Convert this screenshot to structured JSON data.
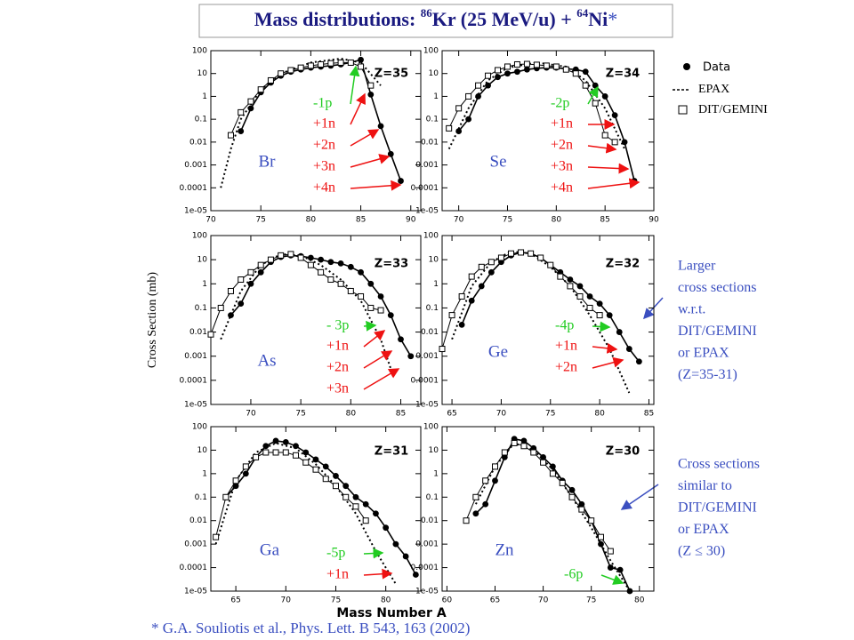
{
  "title_parts": [
    "Mass distributions:  ",
    "86",
    "Kr (25 MeV/u) + ",
    "64",
    "Ni",
    "*"
  ],
  "y_axis_label": "Cross Section (mb)",
  "x_axis_label": "Mass Number A",
  "side_notes": [
    [
      "Larger",
      "cross sections",
      "w.r.t.",
      "DIT/GEMINI",
      "or EPAX",
      "(Z=35-31)"
    ],
    [
      "Cross sections",
      "similar to",
      "DIT/GEMINI",
      "or EPAX",
      "(Z ≤ 30)"
    ]
  ],
  "footnote": "* G.A. Souliotis et al., Phys. Lett.  B  543, 163 (2002)",
  "chart_data": [
    {
      "type": "line",
      "element": "Br",
      "z_label": "Z=35",
      "log_y": true,
      "xlim": [
        70,
        91
      ],
      "xticks": [
        70,
        75,
        80,
        85,
        90
      ],
      "ylim": [
        1e-05,
        100
      ],
      "yticks": [
        100,
        10,
        1,
        0.1,
        0.01,
        0.001,
        0.0001,
        {
          "value": 1e-05,
          "label": "1e-05"
        }
      ],
      "annotations": [
        {
          "text": "-1p",
          "color": "#22cc22"
        },
        {
          "text": "+1n",
          "color": "#ee1111"
        },
        {
          "text": "+2n",
          "color": "#ee1111"
        },
        {
          "text": "+3n",
          "color": "#ee1111"
        },
        {
          "text": "+4n",
          "color": "#ee1111"
        }
      ],
      "series": [
        {
          "name": "Data",
          "color": "#000000",
          "marker": "circle",
          "dash": false,
          "x": [
            73,
            74,
            75,
            76,
            77,
            78,
            79,
            80,
            81,
            82,
            83,
            84,
            85,
            86,
            87,
            88,
            89
          ],
          "values": [
            0.03,
            0.3,
            1.5,
            4,
            8,
            12,
            15,
            18,
            20,
            22,
            25,
            30,
            40,
            1.2,
            0.05,
            0.003,
            0.0002
          ]
        },
        {
          "name": "EPAX",
          "color": "#000000",
          "marker": "none",
          "dash": true,
          "x": [
            71,
            72,
            73,
            75,
            77,
            80,
            83,
            85,
            87
          ],
          "values": [
            0.0001,
            0.005,
            0.1,
            2,
            10,
            30,
            45,
            30,
            3
          ]
        },
        {
          "name": "DIT/GEMINI",
          "color": "#000000",
          "marker": "square",
          "dash": false,
          "x": [
            72,
            73,
            74,
            75,
            76,
            77,
            78,
            79,
            80,
            81,
            82,
            83,
            84,
            85,
            86
          ],
          "values": [
            0.02,
            0.2,
            0.6,
            2,
            5,
            10,
            14,
            18,
            22,
            25,
            28,
            30,
            30,
            20,
            3
          ]
        }
      ]
    },
    {
      "type": "line",
      "element": "Se",
      "z_label": "Z=34",
      "log_y": true,
      "xlim": [
        68.3,
        90
      ],
      "xticks": [
        70,
        75,
        80,
        85,
        90
      ],
      "ylim": [
        1e-05,
        100
      ],
      "yticks": [
        100,
        10,
        1,
        0.1,
        0.01,
        0.001,
        0.0001,
        {
          "value": 1e-05,
          "label": "1e-05"
        }
      ],
      "annotations": [
        {
          "text": "-2p",
          "color": "#22cc22"
        },
        {
          "text": "+1n",
          "color": "#ee1111"
        },
        {
          "text": "+2n",
          "color": "#ee1111"
        },
        {
          "text": "+3n",
          "color": "#ee1111"
        },
        {
          "text": "+4n",
          "color": "#ee1111"
        }
      ],
      "series": [
        {
          "name": "Data",
          "color": "#000000",
          "marker": "circle",
          "dash": false,
          "x": [
            70,
            71,
            72,
            73,
            74,
            75,
            76,
            77,
            78,
            79,
            80,
            81,
            82,
            83,
            84,
            85,
            86,
            87,
            88
          ],
          "values": [
            0.03,
            0.1,
            1,
            3,
            7,
            10,
            12,
            15,
            17,
            18,
            18,
            16,
            15,
            12,
            3,
            1,
            0.15,
            0.01,
            0.0002
          ]
        },
        {
          "name": "EPAX",
          "color": "#000000",
          "marker": "none",
          "dash": true,
          "x": [
            69,
            71,
            73,
            75,
            78,
            81,
            83,
            85,
            87
          ],
          "values": [
            0.005,
            0.3,
            5,
            18,
            30,
            20,
            5,
            0.3,
            0.005
          ]
        },
        {
          "name": "DIT/GEMINI",
          "color": "#000000",
          "marker": "square",
          "dash": false,
          "x": [
            69,
            70,
            71,
            72,
            73,
            74,
            75,
            76,
            77,
            78,
            79,
            80,
            81,
            82,
            83,
            84,
            85,
            86
          ],
          "values": [
            0.04,
            0.3,
            1,
            3,
            8,
            14,
            20,
            25,
            26,
            24,
            22,
            20,
            15,
            10,
            3,
            0.5,
            0.02,
            0.01
          ]
        }
      ]
    },
    {
      "type": "line",
      "element": "As",
      "z_label": "Z=33",
      "log_y": true,
      "xlim": [
        66,
        87
      ],
      "xticks": [
        70,
        75,
        80,
        85
      ],
      "ylim": [
        1e-05,
        100
      ],
      "yticks": [
        100,
        10,
        1,
        0.1,
        0.01,
        0.001,
        0.0001,
        {
          "value": 1e-05,
          "label": "1e-05"
        }
      ],
      "annotations": [
        {
          "text": "- 3p",
          "color": "#22cc22"
        },
        {
          "text": "+1n",
          "color": "#ee1111"
        },
        {
          "text": "+2n",
          "color": "#ee1111"
        },
        {
          "text": "+3n",
          "color": "#ee1111"
        }
      ],
      "series": [
        {
          "name": "Data",
          "color": "#000000",
          "marker": "circle",
          "dash": false,
          "x": [
            68,
            69,
            70,
            71,
            72,
            73,
            74,
            75,
            76,
            77,
            78,
            79,
            80,
            81,
            82,
            83,
            84,
            85,
            86
          ],
          "values": [
            0.05,
            0.15,
            1,
            3,
            8,
            13,
            15,
            14,
            12,
            10,
            8,
            7,
            5,
            3,
            1,
            0.3,
            0.05,
            0.005,
            0.001
          ]
        },
        {
          "name": "EPAX",
          "color": "#000000",
          "marker": "none",
          "dash": true,
          "x": [
            67,
            69,
            71,
            73,
            75,
            77,
            79,
            81,
            83,
            84
          ],
          "values": [
            0.005,
            0.5,
            6,
            17,
            15,
            6,
            1.5,
            0.2,
            0.005,
            0.0003
          ]
        },
        {
          "name": "DIT/GEMINI",
          "color": "#000000",
          "marker": "square",
          "dash": false,
          "x": [
            66,
            67,
            68,
            69,
            70,
            71,
            72,
            73,
            74,
            75,
            76,
            77,
            78,
            79,
            80,
            81,
            82,
            83
          ],
          "values": [
            0.008,
            0.1,
            0.5,
            1.5,
            3,
            6,
            10,
            15,
            17,
            12,
            6,
            3,
            1.5,
            1,
            0.5,
            0.3,
            0.1,
            0.08
          ]
        }
      ]
    },
    {
      "type": "line",
      "element": "Ge",
      "z_label": "Z=32",
      "log_y": true,
      "xlim": [
        64,
        85.5
      ],
      "xticks": [
        65,
        70,
        75,
        80,
        85
      ],
      "ylim": [
        1e-05,
        100
      ],
      "yticks": [
        100,
        10,
        1,
        0.1,
        0.01,
        0.001,
        0.0001,
        {
          "value": 1e-05,
          "label": "1e-05"
        }
      ],
      "annotations": [
        {
          "text": "-4p",
          "color": "#22cc22"
        },
        {
          "text": "+1n",
          "color": "#ee1111"
        },
        {
          "text": "+2n",
          "color": "#ee1111"
        }
      ],
      "series": [
        {
          "name": "Data",
          "color": "#000000",
          "marker": "circle",
          "dash": false,
          "x": [
            66,
            67,
            68,
            69,
            70,
            71,
            72,
            73,
            74,
            75,
            76,
            77,
            78,
            79,
            80,
            81,
            82,
            83,
            84
          ],
          "values": [
            0.02,
            0.2,
            0.8,
            3,
            8,
            15,
            20,
            18,
            12,
            6,
            3,
            1.5,
            0.8,
            0.3,
            0.15,
            0.05,
            0.01,
            0.002,
            0.0006
          ]
        },
        {
          "name": "EPAX",
          "color": "#000000",
          "marker": "none",
          "dash": true,
          "x": [
            65,
            67,
            69,
            71,
            73,
            75,
            77,
            79,
            81,
            83
          ],
          "values": [
            0.005,
            0.8,
            8,
            22,
            18,
            5,
            0.8,
            0.05,
            0.002,
            3e-05
          ]
        },
        {
          "name": "DIT/GEMINI",
          "color": "#000000",
          "marker": "square",
          "dash": false,
          "x": [
            64,
            65,
            66,
            67,
            68,
            69,
            70,
            71,
            72,
            73,
            74,
            75,
            76,
            77,
            78,
            79,
            80
          ],
          "values": [
            0.002,
            0.05,
            0.3,
            2,
            5,
            8,
            12,
            18,
            20,
            18,
            12,
            6,
            2,
            0.8,
            0.3,
            0.1,
            0.05
          ]
        }
      ]
    },
    {
      "type": "line",
      "element": "Ga",
      "z_label": "Z=31",
      "log_y": true,
      "xlim": [
        62.5,
        83.5
      ],
      "xticks": [
        65,
        70,
        75,
        80
      ],
      "ylim": [
        1e-05,
        100
      ],
      "yticks": [
        100,
        10,
        1,
        0.1,
        0.01,
        0.001,
        0.0001,
        {
          "value": 1e-05,
          "label": "1e-05"
        }
      ],
      "annotations": [
        {
          "text": "-5p",
          "color": "#22cc22"
        },
        {
          "text": "+1n",
          "color": "#ee1111"
        }
      ],
      "series": [
        {
          "name": "Data",
          "color": "#000000",
          "marker": "circle",
          "dash": false,
          "x": [
            64,
            65,
            66,
            67,
            68,
            69,
            70,
            71,
            72,
            73,
            74,
            75,
            76,
            77,
            78,
            79,
            80,
            81,
            82,
            83
          ],
          "values": [
            0.1,
            0.3,
            1,
            5,
            15,
            25,
            22,
            15,
            8,
            4,
            2,
            0.8,
            0.3,
            0.1,
            0.05,
            0.02,
            0.005,
            0.001,
            0.0003,
            5e-05
          ]
        },
        {
          "name": "EPAX",
          "color": "#000000",
          "marker": "none",
          "dash": true,
          "x": [
            63,
            65,
            67,
            69,
            71,
            73,
            75,
            77,
            79,
            81
          ],
          "values": [
            0.001,
            0.5,
            8,
            20,
            12,
            2.5,
            0.3,
            0.02,
            0.0005,
            2e-05
          ]
        },
        {
          "name": "DIT/GEMINI",
          "color": "#000000",
          "marker": "square",
          "dash": false,
          "x": [
            63,
            64,
            65,
            66,
            67,
            68,
            69,
            70,
            71,
            72,
            73,
            74,
            75,
            76,
            77,
            78
          ],
          "values": [
            0.002,
            0.1,
            0.5,
            2,
            5,
            8,
            8,
            8,
            6,
            3,
            1.5,
            0.6,
            0.3,
            0.1,
            0.04,
            0.01
          ]
        }
      ]
    },
    {
      "type": "line",
      "element": "Zn",
      "z_label": "Z=30",
      "log_y": true,
      "xlim": [
        59.5,
        81.5
      ],
      "xticks": [
        60,
        65,
        70,
        75,
        80
      ],
      "ylim": [
        1e-05,
        100
      ],
      "yticks": [
        100,
        10,
        1,
        0.1,
        0.01,
        0.001,
        0.0001,
        {
          "value": 1e-05,
          "label": "1e-05"
        }
      ],
      "annotations": [
        {
          "text": "-6p",
          "color": "#22cc22"
        }
      ],
      "series": [
        {
          "name": "Data",
          "color": "#000000",
          "marker": "circle",
          "dash": false,
          "x": [
            63,
            64,
            65,
            66,
            67,
            68,
            69,
            70,
            71,
            72,
            73,
            74,
            75,
            76,
            77,
            78,
            79
          ],
          "values": [
            0.02,
            0.05,
            0.5,
            5,
            30,
            25,
            12,
            5,
            2,
            0.5,
            0.2,
            0.05,
            0.01,
            0.001,
            0.0001,
            8e-05,
            1e-05
          ]
        },
        {
          "name": "EPAX",
          "color": "#000000",
          "marker": "none",
          "dash": true,
          "x": [
            63,
            65,
            67,
            69,
            71,
            73,
            75,
            77,
            79
          ],
          "values": [
            0.05,
            2,
            20,
            10,
            1.5,
            0.1,
            0.005,
            0.0002,
            1e-05
          ]
        },
        {
          "name": "DIT/GEMINI",
          "color": "#000000",
          "marker": "square",
          "dash": false,
          "x": [
            62,
            63,
            64,
            65,
            66,
            67,
            68,
            69,
            70,
            71,
            72,
            73,
            74,
            75,
            76,
            77
          ],
          "values": [
            0.01,
            0.1,
            0.5,
            2,
            8,
            20,
            15,
            8,
            3,
            1,
            0.4,
            0.1,
            0.03,
            0.01,
            0.002,
            0.0005
          ]
        }
      ]
    }
  ]
}
